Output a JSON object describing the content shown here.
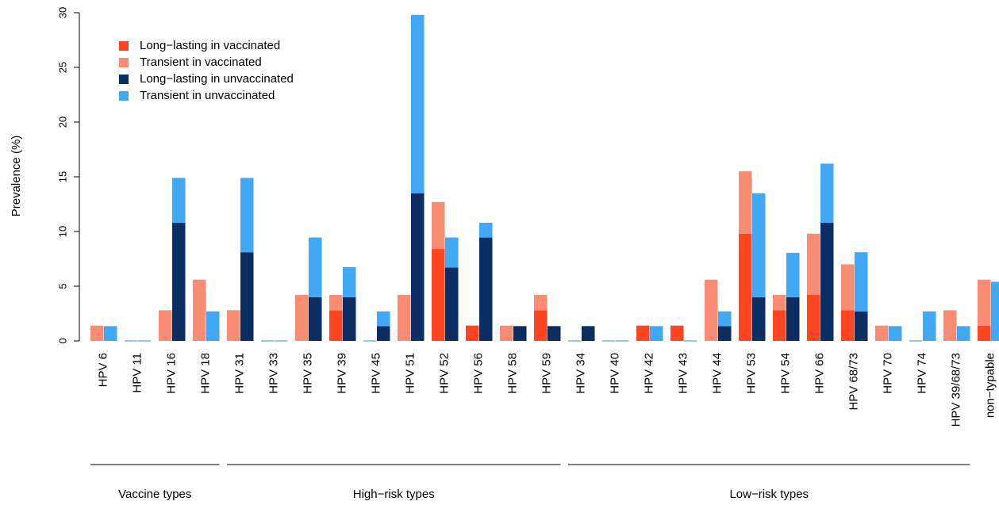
{
  "chart_data": {
    "type": "bar",
    "subtype": "grouped-stacked",
    "ylabel": "Prevalence (%)",
    "xlabel": "",
    "ylim": [
      0,
      30
    ],
    "yticks": [
      0,
      5,
      10,
      15,
      20,
      25,
      30
    ],
    "grid": false,
    "legend_position": "top-left",
    "series": [
      {
        "name": "Long−lasting in vaccinated",
        "color": "#ff4422",
        "group": "vaccinated",
        "stack_order": 0
      },
      {
        "name": "Transient in vaccinated",
        "color": "#fa8c73",
        "group": "vaccinated",
        "stack_order": 1
      },
      {
        "name": "Long−lasting in unvaccinated",
        "color": "#0a2d64",
        "group": "unvaccinated",
        "stack_order": 0
      },
      {
        "name": "Transient in unvaccinated",
        "color": "#40a8f5",
        "group": "unvaccinated",
        "stack_order": 1
      }
    ],
    "categories": [
      {
        "label": "HPV 6",
        "vaccinated": [
          0,
          1.4
        ],
        "unvaccinated": [
          0,
          1.35
        ]
      },
      {
        "label": "HPV 11",
        "vaccinated": [
          0,
          0
        ],
        "unvaccinated": [
          0,
          0
        ]
      },
      {
        "label": "HPV 16",
        "vaccinated": [
          0,
          2.8
        ],
        "unvaccinated": [
          10.8,
          4.1
        ]
      },
      {
        "label": "HPV 18",
        "vaccinated": [
          0,
          5.6
        ],
        "unvaccinated": [
          0,
          2.7
        ]
      },
      {
        "label": "HPV 31",
        "vaccinated": [
          0,
          2.8
        ],
        "unvaccinated": [
          8.1,
          6.8
        ]
      },
      {
        "label": "HPV 33",
        "vaccinated": [
          0,
          0
        ],
        "unvaccinated": [
          0,
          0
        ]
      },
      {
        "label": "HPV 35",
        "vaccinated": [
          0,
          4.2
        ],
        "unvaccinated": [
          4.0,
          5.45
        ]
      },
      {
        "label": "HPV 39",
        "vaccinated": [
          2.8,
          1.4
        ],
        "unvaccinated": [
          4.0,
          2.75
        ]
      },
      {
        "label": "HPV 45",
        "vaccinated": [
          0,
          0
        ],
        "unvaccinated": [
          1.35,
          1.35
        ]
      },
      {
        "label": "HPV 51",
        "vaccinated": [
          0,
          4.2
        ],
        "unvaccinated": [
          13.5,
          16.3
        ]
      },
      {
        "label": "HPV 52",
        "vaccinated": [
          8.4,
          4.3
        ],
        "unvaccinated": [
          6.7,
          2.75
        ]
      },
      {
        "label": "HPV 56",
        "vaccinated": [
          1.4,
          0
        ],
        "unvaccinated": [
          9.45,
          1.35
        ]
      },
      {
        "label": "HPV 58",
        "vaccinated": [
          0,
          1.4
        ],
        "unvaccinated": [
          1.35,
          0
        ]
      },
      {
        "label": "HPV 59",
        "vaccinated": [
          2.8,
          1.4
        ],
        "unvaccinated": [
          1.35,
          0
        ]
      },
      {
        "label": "HPV 34",
        "vaccinated": [
          0,
          0
        ],
        "unvaccinated": [
          1.35,
          0
        ]
      },
      {
        "label": "HPV 40",
        "vaccinated": [
          0,
          0
        ],
        "unvaccinated": [
          0,
          0
        ]
      },
      {
        "label": "HPV 42",
        "vaccinated": [
          1.4,
          0
        ],
        "unvaccinated": [
          0,
          1.35
        ]
      },
      {
        "label": "HPV 43",
        "vaccinated": [
          1.4,
          0
        ],
        "unvaccinated": [
          0,
          0
        ]
      },
      {
        "label": "HPV 44",
        "vaccinated": [
          0,
          5.6
        ],
        "unvaccinated": [
          1.35,
          1.35
        ]
      },
      {
        "label": "HPV 53",
        "vaccinated": [
          9.8,
          5.7
        ],
        "unvaccinated": [
          4.0,
          9.5
        ]
      },
      {
        "label": "HPV 54",
        "vaccinated": [
          2.8,
          1.4
        ],
        "unvaccinated": [
          4.0,
          4.05
        ]
      },
      {
        "label": "HPV 66",
        "vaccinated": [
          4.2,
          5.6
        ],
        "unvaccinated": [
          10.8,
          5.4
        ]
      },
      {
        "label": "HPV 68/73",
        "vaccinated": [
          2.8,
          4.2
        ],
        "unvaccinated": [
          2.7,
          5.4
        ]
      },
      {
        "label": "HPV 70",
        "vaccinated": [
          0,
          1.4
        ],
        "unvaccinated": [
          0,
          1.35
        ]
      },
      {
        "label": "HPV 74",
        "vaccinated": [
          0,
          0
        ],
        "unvaccinated": [
          0,
          2.7
        ]
      },
      {
        "label": "HPV 39/68/73",
        "vaccinated": [
          0,
          2.8
        ],
        "unvaccinated": [
          0,
          1.35
        ]
      },
      {
        "label": "non−typable",
        "vaccinated": [
          1.4,
          4.2
        ],
        "unvaccinated": [
          0,
          5.4
        ]
      }
    ],
    "groups": [
      {
        "label": "Vaccine types",
        "from": 0,
        "to": 3
      },
      {
        "label": "High−risk types",
        "from": 4,
        "to": 13
      },
      {
        "label": "Low−risk types",
        "from": 14,
        "to": 25
      }
    ]
  }
}
